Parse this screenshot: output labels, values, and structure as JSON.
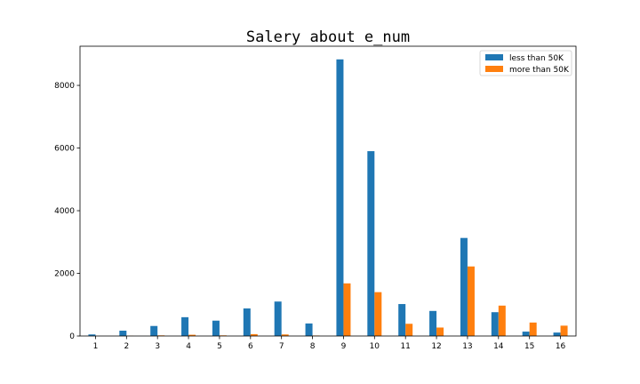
{
  "chart_data": {
    "type": "bar",
    "title": "Salery about e_num",
    "xlabel": "",
    "ylabel": "",
    "categories": [
      "1",
      "2",
      "3",
      "4",
      "5",
      "6",
      "7",
      "8",
      "9",
      "10",
      "11",
      "12",
      "13",
      "14",
      "15",
      "16"
    ],
    "series": [
      {
        "name": "less than 50K",
        "color": "#1f77b4",
        "values": [
          50,
          170,
          320,
          600,
          490,
          880,
          1100,
          400,
          8830,
          5900,
          1020,
          800,
          3130,
          760,
          140,
          110
        ]
      },
      {
        "name": "more than 50K",
        "color": "#ff7f0e",
        "values": [
          0,
          5,
          20,
          40,
          20,
          60,
          50,
          15,
          1680,
          1400,
          390,
          270,
          2220,
          970,
          430,
          330
        ]
      }
    ],
    "yticks": [
      0,
      2000,
      4000,
      6000,
      8000
    ],
    "ylim": [
      0,
      9250
    ],
    "legend": "top-right",
    "grid": false
  }
}
